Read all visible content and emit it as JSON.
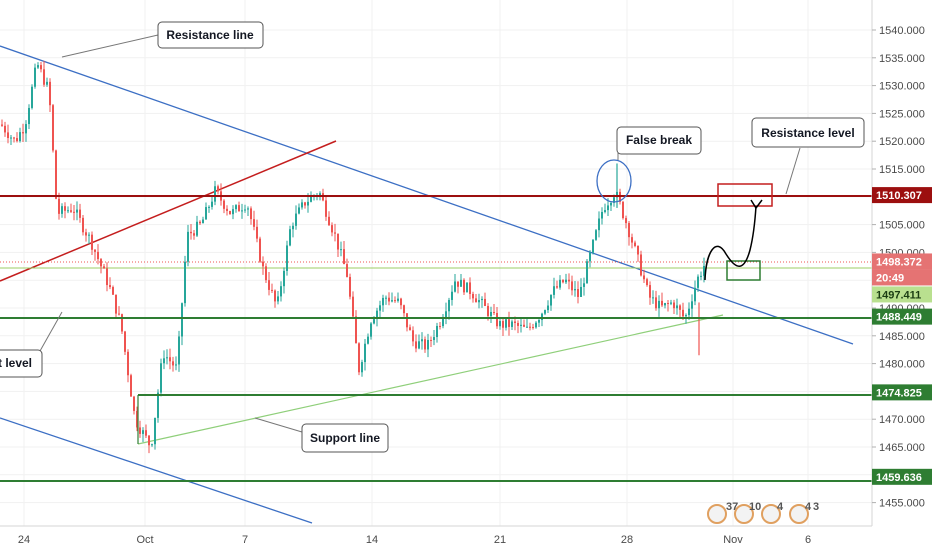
{
  "chart_data": {
    "type": "candlestick",
    "x_ticks": [
      "24",
      "Oct",
      "7",
      "14",
      "21",
      "28",
      "Nov",
      "6"
    ],
    "y_ticks": [
      "1540.000",
      "1535.000",
      "1530.000",
      "1525.000",
      "1520.000",
      "1515.000",
      "1510.000",
      "1505.000",
      "1500.000",
      "1495.000",
      "1490.000",
      "1485.000",
      "1480.000",
      "1475.000",
      "1470.000",
      "1465.000",
      "1460.000",
      "1455.000"
    ],
    "ylim": [
      1452.5,
      1541.5
    ],
    "colors": {
      "up": "#26a69a",
      "down": "#ef5350",
      "resistance": "#9c0f0f",
      "support": "#2e7d32",
      "trend": "#3c6fc4",
      "support_line": "#8fcf7a"
    },
    "levels": [
      {
        "name": "Resistance level",
        "value": 1510.307,
        "label": "1510.307",
        "color": "#9c0f0f"
      },
      {
        "name": "last-price",
        "value": 1498.372,
        "label": "1498.372",
        "color": "#e57373"
      },
      {
        "name": "countdown",
        "value": 1496.4,
        "label": "20:49",
        "color": "#e57373"
      },
      {
        "name": "upper-green",
        "value": 1497.411,
        "label": "1497.411",
        "color": "#9ccc65"
      },
      {
        "name": "support-level",
        "value": 1488.449,
        "label": "1488.449",
        "color": "#2e7d32"
      },
      {
        "name": "support-low",
        "value": 1474.825,
        "label": "1474.825",
        "color": "#2e7d32"
      },
      {
        "name": "bottom",
        "value": 1459.636,
        "label": "1459.636",
        "color": "#2e7d32"
      }
    ],
    "annotations": {
      "resistance_line": "Resistance line",
      "false_break": "False break",
      "resistance_level": "Resistance level",
      "support_level": "t level",
      "support_line": "Support line"
    },
    "event_badges": [
      "37",
      "10",
      "4",
      "4",
      "3"
    ]
  }
}
